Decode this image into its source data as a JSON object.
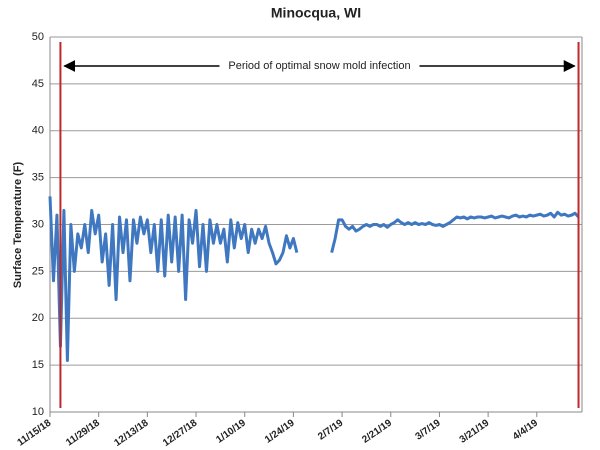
{
  "chart_data": {
    "type": "line",
    "title": "Minocqua, WI",
    "y_label": "Surface Temperature (F)",
    "annotation": "Period of optimal snow mold infection",
    "vlines": [
      "11/18/18",
      "4/16/19"
    ],
    "vline_color": "#c0282d",
    "xlim": [
      "11/15/18",
      "4/17/19"
    ],
    "xticks": [
      "11/15/18",
      "11/29/18",
      "12/13/18",
      "12/27/18",
      "1/10/19",
      "1/24/19",
      "2/7/19",
      "2/21/19",
      "3/7/19",
      "3/21/19",
      "4/4/19"
    ],
    "ylim": [
      10,
      50
    ],
    "yticks": [
      10,
      15,
      20,
      25,
      30,
      35,
      40,
      45,
      50
    ],
    "grid": true,
    "series": [
      {
        "name": "Surface Temperature",
        "color": "#3f78c1",
        "x": [
          "11/15/18",
          "11/16/18",
          "11/17/18",
          "11/18/18",
          "11/19/18",
          "11/20/18",
          "11/21/18",
          "11/22/18",
          "11/23/18",
          "11/24/18",
          "11/25/18",
          "11/26/18",
          "11/27/18",
          "11/28/18",
          "11/29/18",
          "11/30/18",
          "12/1/18",
          "12/2/18",
          "12/3/18",
          "12/4/18",
          "12/5/18",
          "12/6/18",
          "12/7/18",
          "12/8/18",
          "12/9/18",
          "12/10/18",
          "12/11/18",
          "12/12/18",
          "12/13/18",
          "12/14/18",
          "12/15/18",
          "12/16/18",
          "12/17/18",
          "12/18/18",
          "12/19/18",
          "12/20/18",
          "12/21/18",
          "12/22/18",
          "12/23/18",
          "12/24/18",
          "12/25/18",
          "12/26/18",
          "12/27/18",
          "12/28/18",
          "12/29/18",
          "12/30/18",
          "12/31/18",
          "1/1/19",
          "1/2/19",
          "1/3/19",
          "1/4/19",
          "1/5/19",
          "1/6/19",
          "1/7/19",
          "1/8/19",
          "1/9/19",
          "1/10/19",
          "1/11/19",
          "1/12/19",
          "1/13/19",
          "1/14/19",
          "1/15/19",
          "1/16/19",
          "1/17/19",
          "1/18/19",
          "1/19/19",
          "1/20/19",
          "1/21/19",
          "1/22/19",
          "1/23/19",
          "1/24/19",
          "1/25/19",
          "2/1/19",
          "2/4/19",
          "2/5/19",
          "2/6/19",
          "2/7/19",
          "2/8/19",
          "2/9/19",
          "2/10/19",
          "2/11/19",
          "2/12/19",
          "2/13/19",
          "2/14/19",
          "2/15/19",
          "2/16/19",
          "2/17/19",
          "2/18/19",
          "2/19/19",
          "2/20/19",
          "2/21/19",
          "2/22/19",
          "2/23/19",
          "2/24/19",
          "2/25/19",
          "2/26/19",
          "2/27/19",
          "2/28/19",
          "3/1/19",
          "3/2/19",
          "3/3/19",
          "3/4/19",
          "3/5/19",
          "3/6/19",
          "3/7/19",
          "3/8/19",
          "3/9/19",
          "3/10/19",
          "3/11/19",
          "3/12/19",
          "3/13/19",
          "3/14/19",
          "3/15/19",
          "3/16/19",
          "3/17/19",
          "3/18/19",
          "3/19/19",
          "3/20/19",
          "3/21/19",
          "3/22/19",
          "3/23/19",
          "3/24/19",
          "3/25/19",
          "3/26/19",
          "3/27/19",
          "3/28/19",
          "3/29/19",
          "3/30/19",
          "3/31/19",
          "4/1/19",
          "4/2/19",
          "4/3/19",
          "4/4/19",
          "4/5/19",
          "4/6/19",
          "4/7/19",
          "4/8/19",
          "4/9/19",
          "4/10/19",
          "4/11/19",
          "4/12/19",
          "4/13/19",
          "4/14/19",
          "4/15/19",
          "4/16/19"
        ],
        "values": [
          33,
          24,
          31,
          17,
          31.5,
          15.5,
          30,
          25,
          29,
          27.5,
          30,
          27,
          31.5,
          29,
          31,
          26,
          29,
          23.5,
          30,
          22,
          30.8,
          27,
          30.5,
          24,
          30.5,
          28,
          30.8,
          29,
          30.5,
          27,
          30,
          25,
          30.5,
          24.5,
          31,
          26,
          30.8,
          25,
          31,
          22,
          30.5,
          28,
          31.5,
          25.5,
          30,
          25,
          30.5,
          28,
          30,
          28,
          29.5,
          26,
          30.5,
          27.5,
          30.2,
          28.5,
          30,
          27,
          29.5,
          28,
          29.5,
          28.5,
          29.8,
          28,
          27,
          25.8,
          26.2,
          27,
          28.8,
          27.5,
          28.5,
          27,
          null,
          27,
          28.5,
          30.5,
          30.5,
          29.8,
          29.5,
          29.8,
          29.3,
          29.5,
          29.8,
          30,
          29.8,
          30,
          30,
          29.8,
          30,
          29.7,
          30,
          30.2,
          30.5,
          30.2,
          30,
          30.2,
          30,
          30.2,
          30,
          30.1,
          30,
          30.2,
          30,
          29.9,
          30,
          29.8,
          30,
          30.2,
          30.5,
          30.8,
          30.7,
          30.8,
          30.6,
          30.8,
          30.7,
          30.8,
          30.8,
          30.7,
          30.8,
          30.9,
          30.7,
          30.8,
          30.9,
          30.8,
          30.7,
          30.9,
          31,
          30.8,
          30.9,
          30.8,
          31,
          30.9,
          31,
          31.1,
          30.9,
          31,
          31.2,
          30.8,
          31.3,
          31,
          31.1,
          30.9,
          31,
          31.2,
          30.8
        ]
      }
    ]
  }
}
